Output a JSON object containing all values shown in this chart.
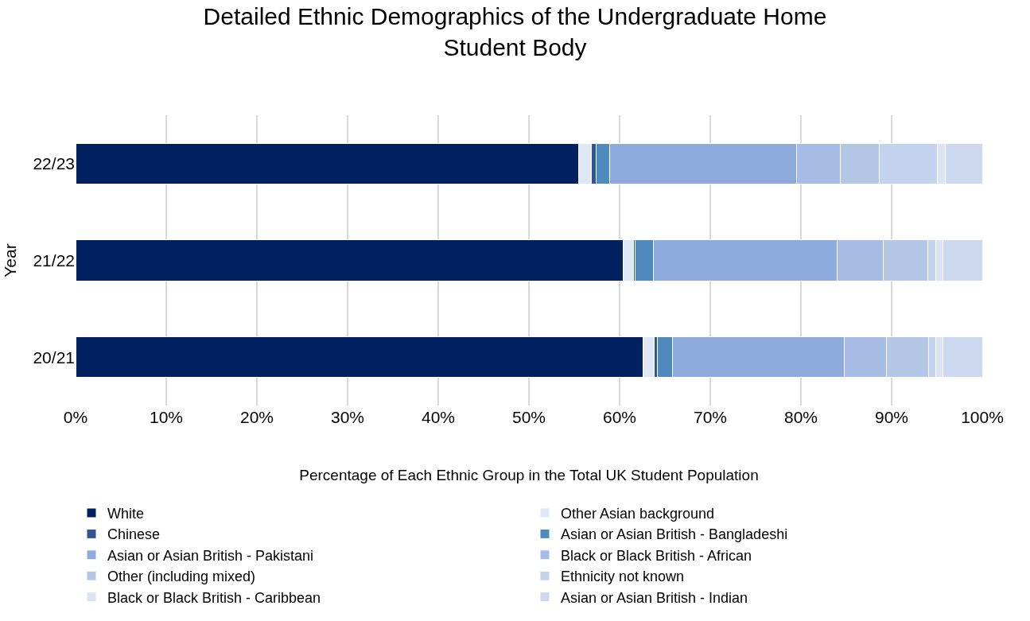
{
  "chart_data": {
    "type": "bar",
    "orientation": "horizontal",
    "stacked": true,
    "title": "Detailed Ethnic Demographics of the Undergraduate Home Student Body",
    "xlabel": "Percentage of Each Ethnic Group in the Total UK Student Population",
    "ylabel": "Year",
    "categories": [
      "22/23",
      "21/22",
      "20/21"
    ],
    "series": [
      {
        "name": "White",
        "color": "#002060",
        "values": [
          55.5,
          60.4,
          62.6
        ]
      },
      {
        "name": "Other Asian background",
        "color": "#dfe7f5",
        "values": [
          1.4,
          1.1,
          1.2
        ]
      },
      {
        "name": "Chinese",
        "color": "#2f5597",
        "values": [
          0.5,
          0.2,
          0.4
        ]
      },
      {
        "name": "Asian or Asian British - Bangladeshi",
        "color": "#4e8abe",
        "values": [
          1.5,
          2.0,
          1.6
        ]
      },
      {
        "name": "Asian or Asian British - Pakistani",
        "color": "#8faadc",
        "values": [
          20.6,
          20.3,
          19.0
        ]
      },
      {
        "name": "Black or Black British - African",
        "color": "#a7bce5",
        "values": [
          4.8,
          5.1,
          4.6
        ]
      },
      {
        "name": "Other (including mixed)",
        "color": "#b4c7e7",
        "values": [
          4.3,
          4.9,
          4.7
        ]
      },
      {
        "name": "Ethnicity not known",
        "color": "#c3d2ee",
        "values": [
          6.4,
          0.9,
          0.8
        ]
      },
      {
        "name": "Black or Black British - Caribbean",
        "color": "#dae3f3",
        "values": [
          0.9,
          0.8,
          0.8
        ]
      },
      {
        "name": "Asian or Asian British - Indian",
        "color": "#cbd8f0",
        "values": [
          4.1,
          4.3,
          4.3
        ]
      }
    ],
    "xlim": [
      0,
      100
    ],
    "xticks": [
      {
        "value": 0,
        "label": "0%"
      },
      {
        "value": 10,
        "label": "10%"
      },
      {
        "value": 20,
        "label": "20%"
      },
      {
        "value": 30,
        "label": "30%"
      },
      {
        "value": 40,
        "label": "40%"
      },
      {
        "value": 50,
        "label": "50%"
      },
      {
        "value": 60,
        "label": "60%"
      },
      {
        "value": 70,
        "label": "70%"
      },
      {
        "value": 80,
        "label": "80%"
      },
      {
        "value": 90,
        "label": "90%"
      },
      {
        "value": 100,
        "label": "100%"
      }
    ],
    "grid": "x",
    "legend": "bottom"
  }
}
